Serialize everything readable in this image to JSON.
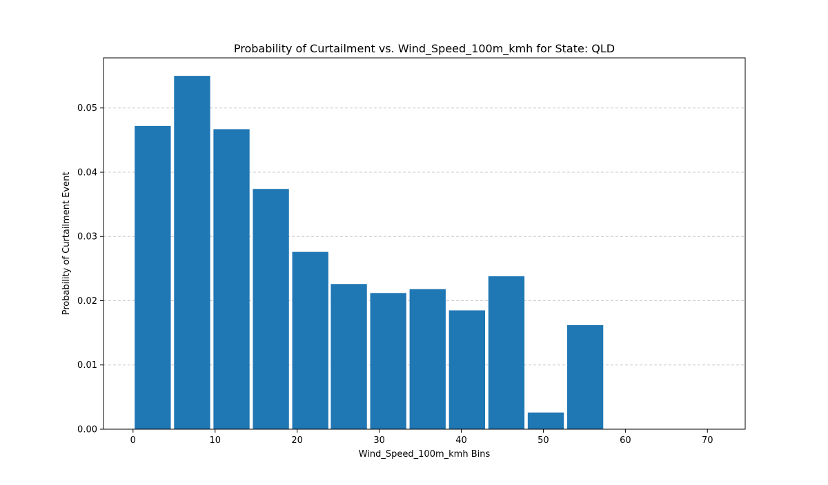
{
  "chart_data": {
    "type": "bar",
    "title": "Probability of Curtailment vs. Wind_Speed_100m_kmh for State: QLD",
    "xlabel": "Wind_Speed_100m_kmh Bins",
    "ylabel": "Probability of Curtailment Event",
    "xlim": [
      -3.6,
      74.6
    ],
    "ylim": [
      0,
      0.0578
    ],
    "bar_width": 4.4,
    "x_ticks": [
      0,
      10,
      20,
      30,
      40,
      50,
      60,
      70
    ],
    "x_tick_labels": [
      "0",
      "10",
      "20",
      "30",
      "40",
      "50",
      "60",
      "70"
    ],
    "y_ticks": [
      0,
      0.01,
      0.02,
      0.03,
      0.04,
      0.05
    ],
    "y_tick_labels": [
      "0.00",
      "0.01",
      "0.02",
      "0.03",
      "0.04",
      "0.05"
    ],
    "grid": {
      "axis": "y",
      "style": "dashed"
    },
    "bars": [
      {
        "x": 2.4,
        "value": 0.0472
      },
      {
        "x": 7.2,
        "value": 0.055
      },
      {
        "x": 12.0,
        "value": 0.0467
      },
      {
        "x": 16.8,
        "value": 0.0374
      },
      {
        "x": 21.6,
        "value": 0.0276
      },
      {
        "x": 26.3,
        "value": 0.0226
      },
      {
        "x": 31.1,
        "value": 0.0212
      },
      {
        "x": 35.9,
        "value": 0.0218
      },
      {
        "x": 40.7,
        "value": 0.0185
      },
      {
        "x": 45.5,
        "value": 0.0238
      },
      {
        "x": 50.3,
        "value": 0.0026
      },
      {
        "x": 55.1,
        "value": 0.0162
      },
      {
        "x": 59.9,
        "value": 0
      },
      {
        "x": 64.7,
        "value": 0
      },
      {
        "x": 69.5,
        "value": 0
      }
    ],
    "colors": {
      "bar": "#1f77b4",
      "grid": "#c8c8c8",
      "axis": "#000000"
    }
  }
}
